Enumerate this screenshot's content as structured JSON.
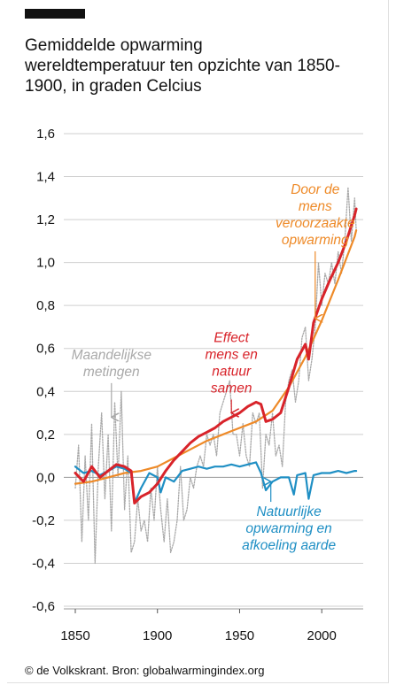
{
  "header": {
    "title": "Gemiddelde opwarming\nwereldtemperatuur ten opzichte van 1850-\n1900, in graden Celcius"
  },
  "footer": {
    "credit": "© de Volkskrant. Bron: globalwarmingindex.org"
  },
  "colors": {
    "combined": "#d8232a",
    "human": "#ee8a28",
    "natural": "#1f8fc4",
    "monthly": "#a9a9a9",
    "grid": "#cfcfcf",
    "accent": "#111111"
  },
  "chart_data": {
    "type": "line",
    "title": "Gemiddelde opwarming wereldtemperatuur ten opzichte van 1850-1900, in graden Celcius",
    "xlim": [
      1850,
      2022
    ],
    "ylim": [
      -0.6,
      1.6
    ],
    "x_ticks": [
      "1850",
      "1900",
      "1950",
      "2000"
    ],
    "x_tick_values": [
      1850,
      1900,
      1950,
      2000
    ],
    "y_ticks": [
      "1,6",
      "1,4",
      "1,2",
      "1,0",
      "0,8",
      "0,6",
      "0,4",
      "0,2",
      "0,0",
      "-0,2",
      "-0,4",
      "-0,6"
    ],
    "y_tick_values": [
      1.6,
      1.4,
      1.2,
      1.0,
      0.8,
      0.6,
      0.4,
      0.2,
      0.0,
      -0.2,
      -0.4,
      -0.6
    ],
    "grid": true,
    "series": [
      {
        "name": "Maandelijkse metingen",
        "style": "dotted",
        "color_key": "monthly",
        "x": [
          1850,
          1852,
          1854,
          1856,
          1858,
          1860,
          1862,
          1864,
          1866,
          1868,
          1870,
          1872,
          1874,
          1876,
          1878,
          1880,
          1882,
          1884,
          1886,
          1888,
          1890,
          1892,
          1894,
          1896,
          1898,
          1900,
          1902,
          1904,
          1906,
          1908,
          1910,
          1912,
          1914,
          1916,
          1918,
          1920,
          1922,
          1924,
          1926,
          1928,
          1930,
          1932,
          1934,
          1936,
          1938,
          1940,
          1942,
          1944,
          1946,
          1948,
          1950,
          1952,
          1954,
          1956,
          1958,
          1960,
          1962,
          1964,
          1966,
          1968,
          1970,
          1972,
          1974,
          1976,
          1978,
          1980,
          1982,
          1984,
          1986,
          1988,
          1990,
          1992,
          1994,
          1996,
          1998,
          2000,
          2002,
          2004,
          2006,
          2008,
          2010,
          2012,
          2014,
          2016,
          2018,
          2020,
          2021
        ],
        "y": [
          -0.05,
          0.15,
          -0.3,
          0.1,
          -0.2,
          0.25,
          -0.4,
          0.05,
          0.3,
          -0.1,
          0.2,
          -0.25,
          0.35,
          0.0,
          0.4,
          -0.15,
          0.1,
          -0.35,
          -0.3,
          -0.1,
          -0.25,
          -0.2,
          -0.3,
          -0.05,
          -0.2,
          0.05,
          -0.15,
          -0.3,
          -0.1,
          -0.35,
          -0.3,
          -0.2,
          0.05,
          -0.2,
          -0.15,
          0.0,
          -0.05,
          0.05,
          0.1,
          0.05,
          0.2,
          0.15,
          0.2,
          0.1,
          0.3,
          0.35,
          0.4,
          0.45,
          0.2,
          0.2,
          0.1,
          0.25,
          0.1,
          0.05,
          0.3,
          0.25,
          0.3,
          -0.05,
          0.2,
          0.15,
          0.3,
          0.1,
          0.15,
          0.05,
          0.35,
          0.45,
          0.5,
          0.35,
          0.45,
          0.65,
          0.7,
          0.45,
          0.55,
          0.7,
          1.0,
          0.8,
          0.95,
          0.9,
          1.0,
          0.9,
          1.05,
          0.95,
          1.1,
          1.35,
          1.1,
          1.3,
          1.15
        ]
      },
      {
        "name": "Effect mens en natuur samen",
        "style": "solid",
        "color_key": "combined",
        "x": [
          1850,
          1855,
          1860,
          1865,
          1870,
          1875,
          1880,
          1884,
          1886,
          1890,
          1895,
          1900,
          1905,
          1910,
          1915,
          1920,
          1925,
          1930,
          1935,
          1940,
          1945,
          1950,
          1955,
          1960,
          1963,
          1966,
          1970,
          1975,
          1980,
          1985,
          1990,
          1992,
          1995,
          2000,
          2005,
          2010,
          2015,
          2020,
          2021
        ],
        "y": [
          0.02,
          -0.02,
          0.05,
          0.0,
          0.03,
          0.06,
          0.05,
          0.03,
          -0.12,
          -0.09,
          -0.07,
          -0.03,
          0.03,
          0.08,
          0.12,
          0.16,
          0.19,
          0.21,
          0.23,
          0.26,
          0.28,
          0.3,
          0.33,
          0.35,
          0.34,
          0.26,
          0.27,
          0.3,
          0.42,
          0.55,
          0.62,
          0.55,
          0.72,
          0.83,
          0.92,
          1.0,
          1.1,
          1.22,
          1.25
        ]
      },
      {
        "name": "Door de mens veroorzaakte opwarming",
        "style": "solid",
        "color_key": "human",
        "x": [
          1850,
          1860,
          1870,
          1880,
          1890,
          1900,
          1910,
          1920,
          1930,
          1940,
          1950,
          1960,
          1970,
          1980,
          1990,
          2000,
          2010,
          2020,
          2021
        ],
        "y": [
          -0.03,
          -0.02,
          0.0,
          0.02,
          0.03,
          0.05,
          0.09,
          0.13,
          0.17,
          0.2,
          0.23,
          0.26,
          0.31,
          0.42,
          0.56,
          0.73,
          0.92,
          1.12,
          1.15
        ]
      },
      {
        "name": "Natuurlijke opwarming en afkoeling aarde",
        "style": "solid",
        "color_key": "natural",
        "x": [
          1850,
          1855,
          1860,
          1865,
          1870,
          1875,
          1880,
          1884,
          1886,
          1890,
          1895,
          1900,
          1902,
          1905,
          1910,
          1915,
          1920,
          1925,
          1930,
          1935,
          1940,
          1945,
          1950,
          1955,
          1960,
          1963,
          1966,
          1970,
          1975,
          1980,
          1983,
          1985,
          1990,
          1992,
          1995,
          2000,
          2005,
          2010,
          2015,
          2020,
          2021
        ],
        "y": [
          0.05,
          0.02,
          0.03,
          0.01,
          0.03,
          0.05,
          0.04,
          0.02,
          -0.12,
          -0.05,
          0.02,
          0.0,
          -0.07,
          0.0,
          -0.02,
          0.03,
          0.04,
          0.05,
          0.04,
          0.05,
          0.05,
          0.06,
          0.05,
          0.06,
          0.07,
          0.02,
          -0.06,
          -0.02,
          0.0,
          0.0,
          -0.08,
          0.01,
          0.02,
          -0.1,
          0.01,
          0.02,
          0.02,
          0.03,
          0.02,
          0.03,
          0.03
        ]
      }
    ],
    "annotations": [
      {
        "lines": [
          "Maandelijkse",
          "metingen"
        ],
        "color_key": "monthly",
        "year": 1872,
        "value": 0.55,
        "arrow_to": [
          1872,
          0.28
        ]
      },
      {
        "lines": [
          "Effect",
          "mens en",
          "natuur",
          "samen"
        ],
        "color_key": "combined",
        "year": 1945,
        "value": 0.63,
        "arrow_to": [
          1945,
          0.3
        ]
      },
      {
        "lines": [
          "Door de",
          "mens",
          "veroorzaakte",
          "opwarming"
        ],
        "color_key": "human",
        "year": 1996,
        "value": 1.32,
        "arrow_to": [
          1996,
          0.74
        ]
      },
      {
        "lines": [
          "Natuurlijke",
          "opwarming en",
          "afkoeling aarde"
        ],
        "color_key": "natural",
        "year": 1980,
        "value": -0.18,
        "arrow_to": [
          1969,
          -0.02
        ]
      }
    ]
  }
}
